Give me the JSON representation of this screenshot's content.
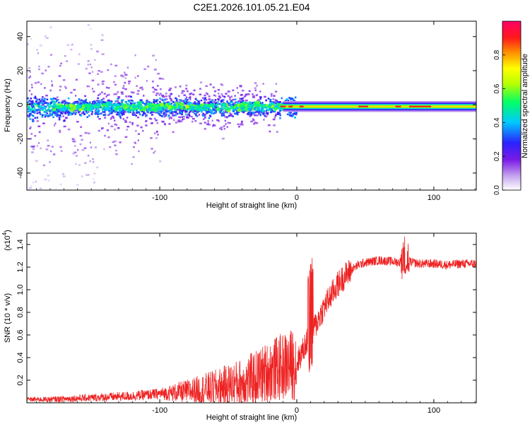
{
  "chart_data": [
    {
      "type": "heatmap",
      "title": "C2E1.2026.101.05.21.E04",
      "xlabel": "Height of straight line (km)",
      "ylabel": "Frequency (Hz)",
      "xlim": [
        -197,
        131
      ],
      "ylim": [
        -50,
        49
      ],
      "x_ticks": [
        -100,
        0,
        100
      ],
      "y_ticks": [
        -40,
        -20,
        0,
        20,
        40
      ],
      "colorbar": {
        "label": "Normalized spectral amplitude",
        "range": [
          0,
          1
        ],
        "ticks": [
          "0.0",
          "0.2",
          "0.4",
          "0.6",
          "0.8"
        ],
        "tick_values": [
          0.0,
          0.2,
          0.4,
          0.6,
          0.8
        ]
      },
      "band": {
        "center_hz": -1,
        "description": "Spectral energy concentrated near 0 Hz; broadband scatter below -20 km, narrow high-amplitude line above 0 km"
      }
    },
    {
      "type": "line",
      "title": "",
      "xlabel": "Height of straight line (km)",
      "ylabel": "SNR (10 * v/v)",
      "y_scale_label": "(x10",
      "y_scale_exp": "4",
      "y_scale_close": ")",
      "xlim": [
        -197,
        131
      ],
      "ylim": [
        0,
        1.5
      ],
      "x_ticks": [
        -100,
        0,
        100
      ],
      "y_ticks": [
        "0.2",
        "0.4",
        "0.6",
        "0.8",
        "1.0",
        "1.2",
        "1.4"
      ],
      "y_tick_values": [
        0.2,
        0.4,
        0.6,
        0.8,
        1.0,
        1.2,
        1.4
      ],
      "series": [
        {
          "name": "SNR",
          "color": "#ee2222",
          "x": [
            -197,
            -180,
            -160,
            -140,
            -120,
            -100,
            -80,
            -60,
            -40,
            -30,
            -20,
            -10,
            0,
            5,
            10,
            15,
            20,
            25,
            30,
            35,
            40,
            45,
            50,
            60,
            70,
            75,
            78,
            80,
            85,
            90,
            100,
            110,
            120,
            131
          ],
          "values": [
            0.03,
            0.03,
            0.04,
            0.05,
            0.06,
            0.08,
            0.1,
            0.13,
            0.18,
            0.22,
            0.28,
            0.32,
            0.35,
            0.48,
            0.6,
            0.72,
            0.85,
            0.95,
            1.05,
            1.12,
            1.18,
            1.22,
            1.24,
            1.26,
            1.25,
            1.24,
            1.3,
            1.26,
            1.24,
            1.23,
            1.23,
            1.22,
            1.23,
            1.23
          ]
        }
      ]
    }
  ]
}
